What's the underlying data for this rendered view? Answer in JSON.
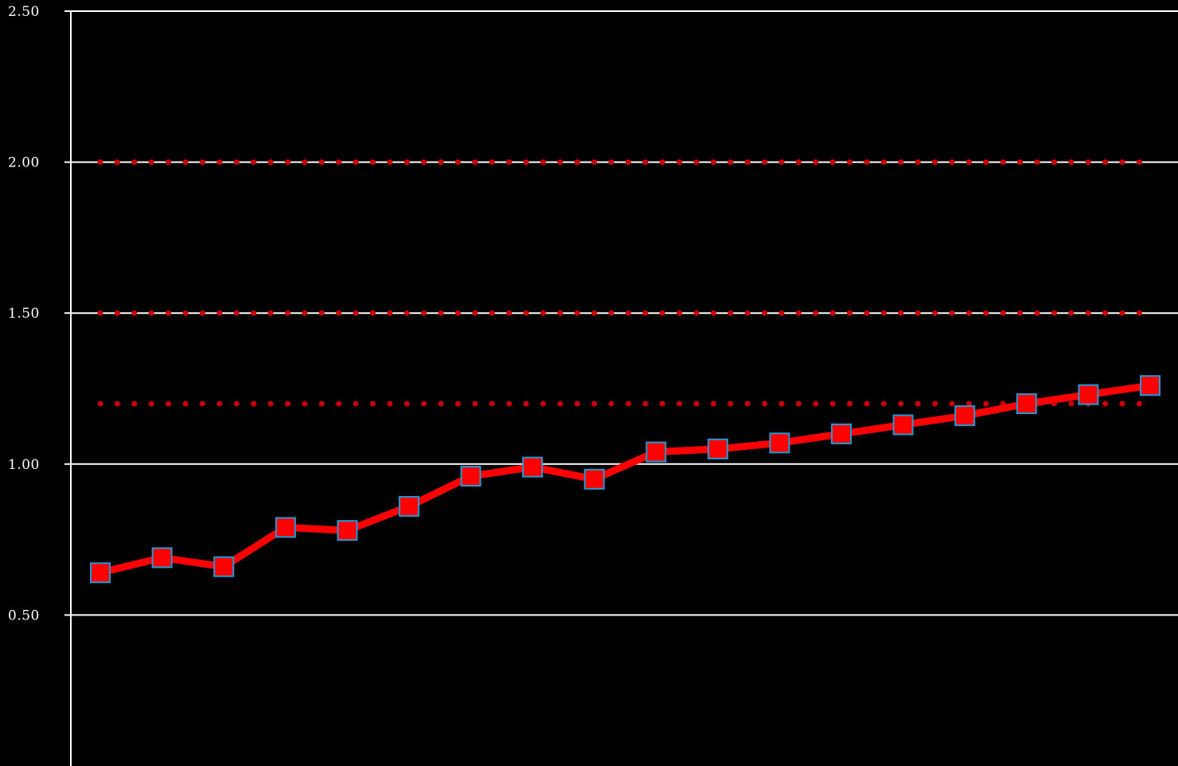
{
  "chart_data": {
    "type": "line",
    "title": "",
    "xlabel": "",
    "ylabel": "",
    "ylim": [
      0,
      2.5
    ],
    "yticks": [
      "2.50",
      "2.00",
      "1.50",
      "1.00",
      "0.50"
    ],
    "grid": true,
    "legend": "none",
    "series": [
      {
        "values": [
          0.64,
          0.69,
          0.66,
          0.79,
          0.78,
          0.86,
          0.96,
          0.99,
          0.95,
          1.04,
          1.05,
          1.07,
          1.1,
          1.13,
          1.16,
          1.2,
          1.23,
          1.26
        ],
        "color": "#ff0000",
        "marker": "square",
        "marker_edge_color": "#1e9bd7"
      }
    ],
    "reference_lines": [
      {
        "value": 2.0,
        "style": "dotted",
        "color": "#cc0000"
      },
      {
        "value": 1.5,
        "style": "dotted",
        "color": "#cc0000"
      },
      {
        "value": 1.2,
        "style": "dotted",
        "color": "#cc0000"
      }
    ],
    "colors": {
      "background": "#000000",
      "axis": "#ffffff",
      "grid": "#ffffff"
    }
  }
}
